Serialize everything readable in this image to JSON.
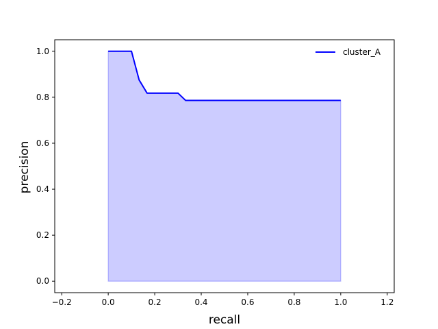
{
  "chart_data": {
    "type": "area",
    "title": "",
    "xlabel": "recall",
    "ylabel": "precision",
    "xlim": [
      -0.23,
      1.23
    ],
    "ylim": [
      -0.05,
      1.05
    ],
    "xticks": [
      -0.2,
      0.0,
      0.2,
      0.4,
      0.6,
      0.8,
      1.0,
      1.2
    ],
    "xtick_labels": [
      "−0.2",
      "0.0",
      "0.2",
      "0.4",
      "0.6",
      "0.8",
      "1.0",
      "1.2"
    ],
    "yticks": [
      0.0,
      0.2,
      0.4,
      0.6,
      0.8,
      1.0
    ],
    "ytick_labels": [
      "0.0",
      "0.2",
      "0.4",
      "0.6",
      "0.8",
      "1.0"
    ],
    "grid": false,
    "legend_position": "top-right",
    "series": [
      {
        "name": "cluster_A",
        "line_color": "#0000ff",
        "fill_color": "#0000ff",
        "fill_opacity": 0.2,
        "x": [
          0.0,
          0.033,
          0.067,
          0.1,
          0.133,
          0.167,
          0.2,
          0.233,
          0.267,
          0.3,
          0.333,
          0.367,
          0.4,
          0.5,
          0.6,
          0.7,
          0.8,
          0.9,
          1.0
        ],
        "y": [
          1.0,
          1.0,
          1.0,
          1.0,
          0.875,
          0.818,
          0.818,
          0.818,
          0.818,
          0.818,
          0.786,
          0.786,
          0.786,
          0.786,
          0.786,
          0.786,
          0.786,
          0.786,
          0.786
        ]
      }
    ]
  }
}
